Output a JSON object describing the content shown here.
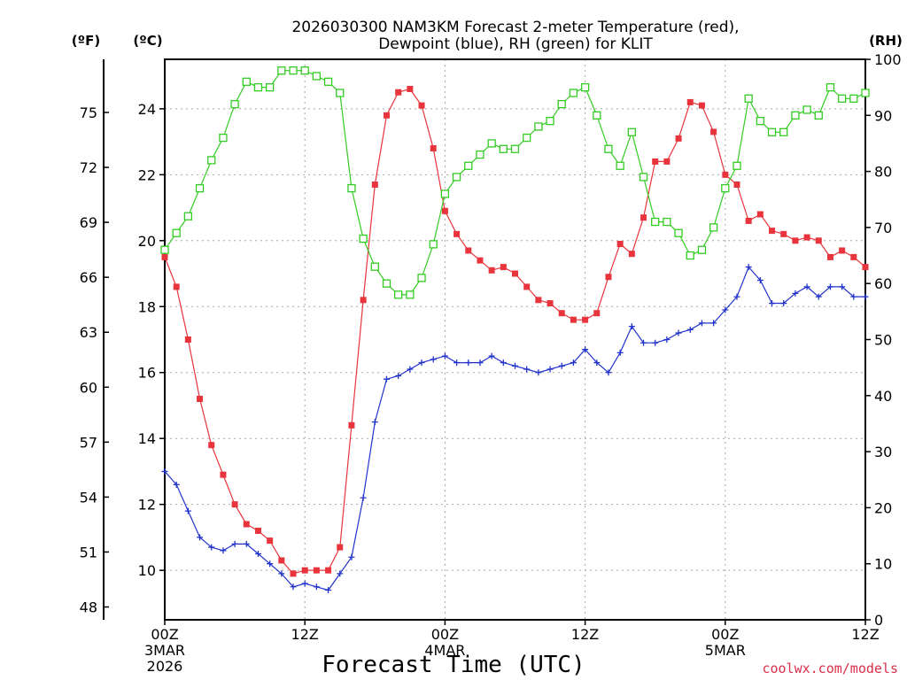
{
  "chart_data": {
    "type": "line",
    "title_line1": "2026030300 NAM3KM Forecast 2-meter Temperature (red),",
    "title_line2": "Dewpoint (blue), RH (green) for KLIT",
    "xlabel": "Forecast Time (UTC)",
    "credit": "coolwx.com/models",
    "units": {
      "fahrenheit": "(ºF)",
      "celsius": "(ºC)",
      "rh": "(RH)"
    },
    "x_hours_range": [
      0,
      60
    ],
    "x_ticks": [
      {
        "hour": 0,
        "label": "00Z",
        "sub1": "3MAR",
        "sub2": "2026"
      },
      {
        "hour": 12,
        "label": "12Z",
        "sub1": "",
        "sub2": ""
      },
      {
        "hour": 24,
        "label": "00Z",
        "sub1": "4MAR",
        "sub2": ""
      },
      {
        "hour": 36,
        "label": "12Z",
        "sub1": "",
        "sub2": ""
      },
      {
        "hour": 48,
        "label": "00Z",
        "sub1": "5MAR",
        "sub2": ""
      },
      {
        "hour": 60,
        "label": "12Z",
        "sub1": "",
        "sub2": ""
      }
    ],
    "celsius_range": [
      8.5,
      25.5
    ],
    "celsius_ticks": [
      10,
      12,
      14,
      16,
      18,
      20,
      22,
      24
    ],
    "fahrenheit_ticks": [
      48,
      51,
      54,
      57,
      60,
      63,
      66,
      69,
      72,
      75
    ],
    "rh_range": [
      0,
      100
    ],
    "rh_ticks": [
      0,
      10,
      20,
      30,
      40,
      50,
      60,
      70,
      80,
      90,
      100
    ],
    "colors": {
      "temperature": "#e8343c",
      "dewpoint": "#2233cc",
      "rh": "#33cc22",
      "grid": "#a8a8a8"
    },
    "series": [
      {
        "name": "Temperature",
        "axis": "celsius",
        "marker": "filled-square",
        "hours": [
          0,
          1,
          2,
          3,
          4,
          5,
          6,
          7,
          8,
          9,
          10,
          11,
          12,
          13,
          14,
          15,
          16,
          17,
          18,
          19,
          20,
          21,
          22,
          23,
          24,
          25,
          26,
          27,
          28,
          29,
          30,
          31,
          32,
          33,
          34,
          35,
          36,
          37,
          38,
          39,
          40,
          41,
          42,
          43,
          44,
          45,
          46,
          47,
          48,
          49,
          50,
          51,
          52,
          53,
          54,
          55,
          56,
          57,
          58,
          59,
          60
        ],
        "values": [
          19.5,
          18.6,
          17.0,
          15.2,
          13.8,
          12.9,
          12.0,
          11.4,
          11.2,
          10.9,
          10.3,
          9.9,
          10.0,
          10.0,
          10.0,
          10.7,
          14.4,
          18.2,
          21.7,
          23.8,
          24.5,
          24.6,
          24.1,
          22.8,
          20.9,
          20.2,
          19.7,
          19.4,
          19.1,
          19.2,
          19.0,
          18.6,
          18.2,
          18.1,
          17.8,
          17.6,
          17.6,
          17.8,
          18.9,
          19.9,
          19.6,
          20.7,
          22.4,
          22.4,
          23.1,
          24.2,
          24.1,
          23.3,
          22.0,
          21.7,
          20.6,
          20.8,
          20.3,
          20.2,
          20.0,
          20.1,
          20.0,
          19.5,
          19.7,
          19.5,
          19.2
        ]
      },
      {
        "name": "Dewpoint",
        "axis": "celsius",
        "marker": "plus",
        "hours": [
          0,
          1,
          2,
          3,
          4,
          5,
          6,
          7,
          8,
          9,
          10,
          11,
          12,
          13,
          14,
          15,
          16,
          17,
          18,
          19,
          20,
          21,
          22,
          23,
          24,
          25,
          26,
          27,
          28,
          29,
          30,
          31,
          32,
          33,
          34,
          35,
          36,
          37,
          38,
          39,
          40,
          41,
          42,
          43,
          44,
          45,
          46,
          47,
          48,
          49,
          50,
          51,
          52,
          53,
          54,
          55,
          56,
          57,
          58,
          59,
          60
        ],
        "values": [
          13.0,
          12.6,
          11.8,
          11.0,
          10.7,
          10.6,
          10.8,
          10.8,
          10.5,
          10.2,
          9.9,
          9.5,
          9.6,
          9.5,
          9.4,
          9.9,
          10.4,
          12.2,
          14.5,
          15.8,
          15.9,
          16.1,
          16.3,
          16.4,
          16.5,
          16.3,
          16.3,
          16.3,
          16.5,
          16.3,
          16.2,
          16.1,
          16.0,
          16.1,
          16.2,
          16.3,
          16.7,
          16.3,
          16.0,
          16.6,
          17.4,
          16.9,
          16.9,
          17.0,
          17.2,
          17.3,
          17.5,
          17.5,
          17.9,
          18.3,
          19.2,
          18.8,
          18.1,
          18.1,
          18.4,
          18.6,
          18.3,
          18.6,
          18.6,
          18.3,
          18.3
        ]
      },
      {
        "name": "RH",
        "axis": "rh",
        "marker": "open-square",
        "hours": [
          0,
          1,
          2,
          3,
          4,
          5,
          6,
          7,
          8,
          9,
          10,
          11,
          12,
          13,
          14,
          15,
          16,
          17,
          18,
          19,
          20,
          21,
          22,
          23,
          24,
          25,
          26,
          27,
          28,
          29,
          30,
          31,
          32,
          33,
          34,
          35,
          36,
          37,
          38,
          39,
          40,
          41,
          42,
          43,
          44,
          45,
          46,
          47,
          48,
          49,
          50,
          51,
          52,
          53,
          54,
          55,
          56,
          57,
          58,
          59,
          60
        ],
        "values": [
          66,
          69,
          72,
          77,
          82,
          86,
          92,
          96,
          95,
          95,
          98,
          98,
          98,
          97,
          96,
          94,
          77,
          68,
          63,
          60,
          58,
          58,
          61,
          67,
          76,
          79,
          81,
          83,
          85,
          84,
          84,
          86,
          88,
          89,
          92,
          94,
          95,
          90,
          84,
          81,
          87,
          79,
          71,
          71,
          69,
          65,
          66,
          70,
          77,
          81,
          93,
          89,
          87,
          87,
          90,
          91,
          90,
          95,
          93,
          93,
          94
        ]
      }
    ]
  }
}
